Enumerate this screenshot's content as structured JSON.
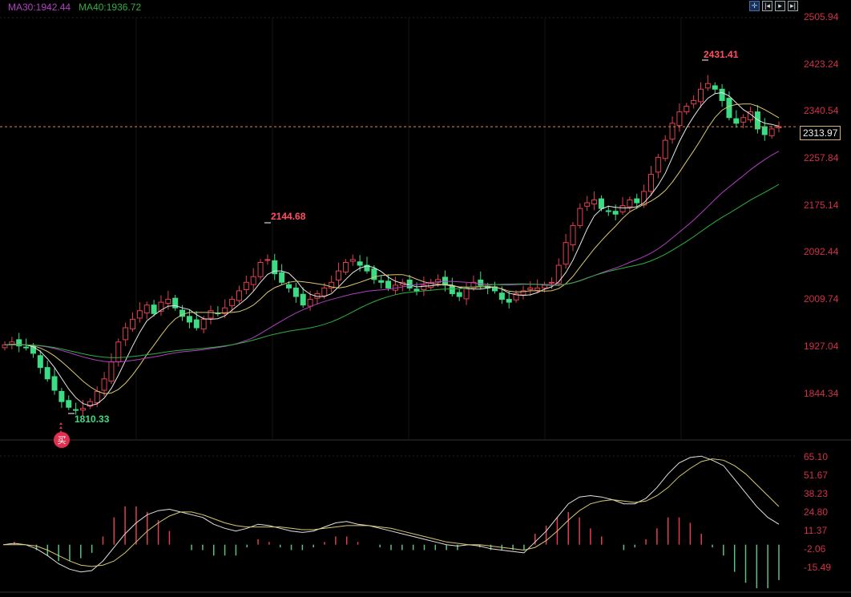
{
  "legend": {
    "ma30": "MA30:1942.44",
    "ma40": "MA40:1936.72"
  },
  "toolbar": {
    "buttons": [
      {
        "name": "crosshair-icon",
        "glyph": "✛"
      },
      {
        "name": "step-back-icon",
        "glyph": "|◂"
      },
      {
        "name": "play-icon",
        "glyph": "▸"
      },
      {
        "name": "step-forward-icon",
        "glyph": "▸|"
      }
    ]
  },
  "price_axis": [
    "2505.94",
    "2423.24",
    "2340.54",
    "2257.84",
    "2175.14",
    "2092.44",
    "2009.74",
    "1927.04",
    "1844.34"
  ],
  "current_price": "2313.97",
  "macd_axis": [
    "65.10",
    "51.67",
    "38.23",
    "24.80",
    "11.37",
    "-2.06",
    "-15.49"
  ],
  "annotations": {
    "high": "2431.41",
    "mid_high": "2144.68",
    "low": "1810.33",
    "buy_marker": "买"
  },
  "colors": {
    "up": "#e0404f",
    "down": "#3ddc84",
    "ma5": "#e8e8e8",
    "ma10": "#d8c870",
    "ma30": "#b040c0",
    "ma40": "#30b040",
    "axis_text": "#d03048",
    "current_line": "#d88a4a"
  },
  "chart_data": [
    {
      "type": "candlestick",
      "title": "Price with MA lines",
      "legend": [
        "MA30:1942.44",
        "MA40:1936.72"
      ],
      "y_ticks": [
        2505.94,
        2423.24,
        2340.54,
        2257.84,
        2175.14,
        2092.44,
        2009.74,
        1927.04,
        1844.34
      ],
      "ylim": [
        1810,
        2510
      ],
      "current_price": 2313.97,
      "annotations": [
        {
          "label": "2431.41",
          "type": "high"
        },
        {
          "label": "2144.68",
          "type": "local high"
        },
        {
          "label": "1810.33",
          "type": "low"
        }
      ],
      "ohlc_close_approx": [
        1930,
        1935,
        1928,
        1925,
        1915,
        1890,
        1870,
        1850,
        1830,
        1820,
        1815,
        1818,
        1830,
        1848,
        1870,
        1900,
        1935,
        1960,
        1975,
        1990,
        2000,
        1985,
        2005,
        2010,
        1995,
        1980,
        1970,
        1960,
        1975,
        1990,
        1985,
        1995,
        2010,
        2025,
        2040,
        2050,
        2075,
        2080,
        2055,
        2040,
        2030,
        2015,
        2000,
        2010,
        2020,
        2030,
        2040,
        2060,
        2075,
        2080,
        2070,
        2060,
        2045,
        2040,
        2030,
        2035,
        2040,
        2030,
        2025,
        2035,
        2040,
        2045,
        2035,
        2020,
        2015,
        2030,
        2040,
        2035,
        2030,
        2025,
        2010,
        2005,
        2020,
        2025,
        2030,
        2030,
        2035,
        2040,
        2070,
        2110,
        2140,
        2170,
        2180,
        2185,
        2170,
        2165,
        2160,
        2175,
        2185,
        2180,
        2200,
        2230,
        2260,
        2290,
        2320,
        2340,
        2350,
        2360,
        2380,
        2390,
        2380,
        2360,
        2330,
        2320,
        2330,
        2340,
        2310,
        2300,
        2310,
        2314
      ],
      "series": [
        {
          "name": "MA30",
          "last": 1942.44
        },
        {
          "name": "MA40",
          "last": 1936.72
        }
      ]
    },
    {
      "type": "bar+line",
      "title": "MACD",
      "y_ticks": [
        65.1,
        51.67,
        38.23,
        24.8,
        11.37,
        -2.06,
        -15.49
      ],
      "ylim": [
        -20,
        68
      ],
      "dif_approx": [
        0,
        1,
        0,
        -3,
        -8,
        -14,
        -18,
        -20,
        -19,
        -12,
        -2,
        8,
        16,
        22,
        25,
        26,
        24,
        22,
        20,
        15,
        12,
        10,
        12,
        15,
        14,
        12,
        10,
        9,
        10,
        13,
        16,
        17,
        15,
        14,
        12,
        10,
        8,
        6,
        4,
        2,
        0,
        -1,
        0,
        -1,
        -3,
        -4,
        -5,
        -6,
        2,
        10,
        20,
        30,
        35,
        36,
        35,
        33,
        30,
        30,
        34,
        42,
        52,
        60,
        64,
        65,
        62,
        58,
        48,
        38,
        28,
        20,
        15
      ],
      "dea_approx": [
        0,
        0,
        0,
        -1,
        -4,
        -8,
        -12,
        -15,
        -16,
        -15,
        -12,
        -6,
        2,
        10,
        16,
        21,
        24,
        24,
        22,
        19,
        16,
        14,
        13,
        13,
        13,
        13,
        12,
        11,
        11,
        12,
        13,
        14,
        14,
        14,
        13,
        12,
        10,
        8,
        6,
        4,
        2,
        1,
        0,
        0,
        -1,
        -2,
        -3,
        -4,
        -2,
        3,
        10,
        18,
        25,
        30,
        32,
        33,
        32,
        31,
        32,
        36,
        42,
        50,
        56,
        61,
        63,
        62,
        58,
        52,
        44,
        36,
        28
      ]
    }
  ]
}
